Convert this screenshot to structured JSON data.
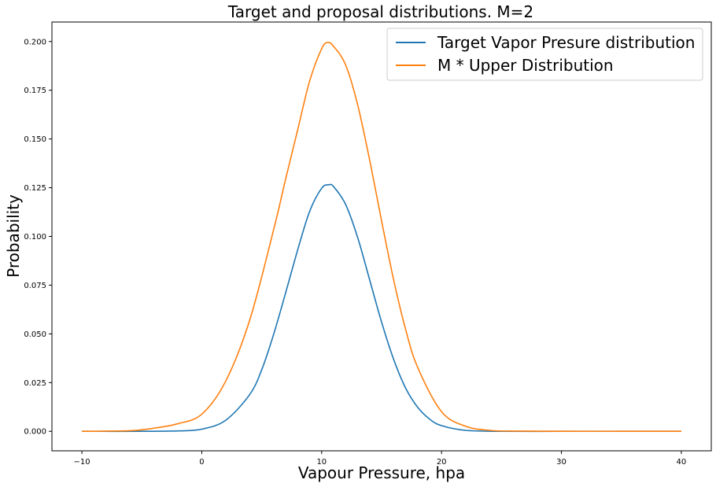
{
  "chart_data": {
    "type": "line",
    "title": "Target and proposal distributions. M=2",
    "xlabel": "Vapour Pressure, hpa",
    "ylabel": "Probability",
    "xlim": [
      -12.5,
      42.5
    ],
    "ylim": [
      -0.01,
      0.21
    ],
    "x_ticks": [
      -10,
      0,
      10,
      20,
      30,
      40
    ],
    "y_ticks": [
      0.0,
      0.025,
      0.05,
      0.075,
      0.1,
      0.125,
      0.15,
      0.175,
      0.2
    ],
    "x_tick_labels": [
      "−10",
      "0",
      "10",
      "20",
      "30",
      "40"
    ],
    "y_tick_labels": [
      "0.000",
      "0.025",
      "0.050",
      "0.075",
      "0.100",
      "0.125",
      "0.150",
      "0.175",
      "0.200"
    ],
    "grid": false,
    "legend_position": "top-right",
    "series": [
      {
        "name": "Target Vapor Presure distribution",
        "color": "#1f77b4",
        "x": [
          -10,
          -5,
          -2,
          0,
          2,
          4,
          5,
          6,
          7,
          8,
          9,
          10,
          10.6,
          11,
          12,
          13,
          14,
          15,
          16,
          17,
          18,
          19,
          20,
          22,
          25,
          30,
          35,
          40
        ],
        "y": [
          0.0,
          0.0,
          0.0002,
          0.0011,
          0.0057,
          0.0189,
          0.0316,
          0.0499,
          0.0712,
          0.0931,
          0.1129,
          0.1247,
          0.1265,
          0.1255,
          0.1164,
          0.0995,
          0.0778,
          0.056,
          0.037,
          0.0222,
          0.0124,
          0.0063,
          0.0029,
          0.0005,
          0.0,
          0.0,
          0.0,
          0.0
        ]
      },
      {
        "name": "M * Upper Distribution",
        "color": "#ff7f0e",
        "x": [
          -10,
          -6,
          -4,
          -2,
          0,
          2,
          4,
          6,
          7,
          8,
          9,
          10,
          10.5,
          11,
          12,
          13,
          14,
          15,
          16,
          17,
          18,
          20,
          22,
          24,
          26,
          30,
          35,
          40
        ],
        "y": [
          0.0,
          0.0003,
          0.0016,
          0.0039,
          0.0088,
          0.0258,
          0.0571,
          0.1036,
          0.1296,
          0.1547,
          0.1798,
          0.1963,
          0.1995,
          0.1975,
          0.188,
          0.1676,
          0.1393,
          0.1079,
          0.0778,
          0.0524,
          0.0329,
          0.0101,
          0.0026,
          0.0005,
          0.0001,
          0.0,
          0.0,
          0.0
        ]
      }
    ]
  }
}
